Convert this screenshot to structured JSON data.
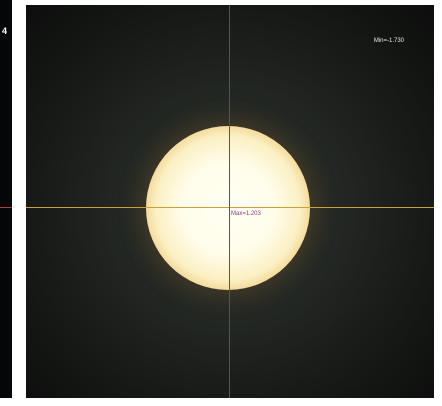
{
  "left_panel": {
    "readout": "4"
  },
  "viewport": {
    "min_label": "Min=-1.730",
    "max_label": "Max=1.203"
  },
  "colors": {
    "background": "#0c0d0c",
    "crosshair_horizontal": "#c9a13a",
    "crosshair_vertical": "#9b3a2c",
    "beam_core": "#fffff4",
    "beam_edge": "#cf8e3c",
    "max_label": "#8a3a8a"
  }
}
